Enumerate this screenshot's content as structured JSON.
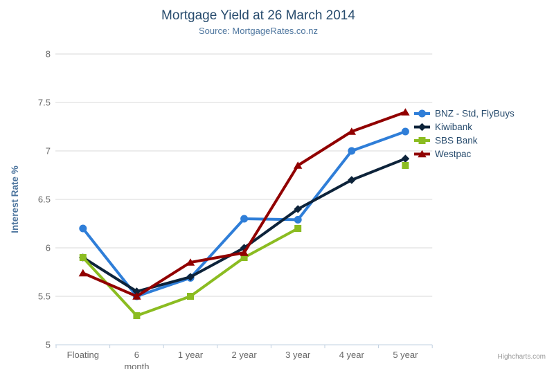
{
  "chart": {
    "title": "Mortgage Yield at 26 March 2014",
    "subtitle": "Source: MortgageRates.co.nz",
    "credits": "Highcharts.com"
  },
  "colors": {
    "title": "#274b6d",
    "subtitle": "#4d759e",
    "axis_labels": "#666666",
    "axis_title": "#4d759e",
    "legend_text": "#274b6d",
    "gridline": "#d8d8d8",
    "axis_line": "#c0d0e0",
    "credits": "#999999"
  },
  "chart_data": {
    "type": "line",
    "title": "Mortgage Yield at 26 March 2014",
    "subtitle": "Source: MortgageRates.co.nz",
    "categories": [
      "Floating",
      "6 month",
      "1 year",
      "2 year",
      "3 year",
      "4 year",
      "5 year"
    ],
    "wrap_label_indices": [
      1
    ],
    "xlabel": "",
    "ylabel": "Interest Rate %",
    "ylim": [
      5,
      8
    ],
    "ytick_interval": 0.5,
    "yticks": [
      5,
      5.5,
      6,
      6.5,
      7,
      7.5,
      8
    ],
    "grid": true,
    "legend_position": "right",
    "series": [
      {
        "name": "BNZ - Std, FlyBuys",
        "marker": "circle",
        "color": "#2f7ed8",
        "values": [
          6.2,
          5.5,
          5.69,
          6.3,
          6.29,
          7.0,
          7.2
        ]
      },
      {
        "name": "Kiwibank",
        "marker": "diamond",
        "color": "#0d233a",
        "values": [
          5.9,
          5.55,
          5.7,
          6.0,
          6.4,
          6.7,
          6.92
        ]
      },
      {
        "name": "SBS Bank",
        "marker": "square",
        "color": "#8bbc21",
        "values": [
          5.9,
          5.3,
          5.5,
          5.9,
          6.2,
          null,
          6.85
        ]
      },
      {
        "name": "Westpac",
        "marker": "triangle",
        "color": "#910000",
        "values": [
          5.74,
          5.5,
          5.85,
          5.95,
          6.85,
          7.2,
          7.4
        ]
      }
    ]
  }
}
